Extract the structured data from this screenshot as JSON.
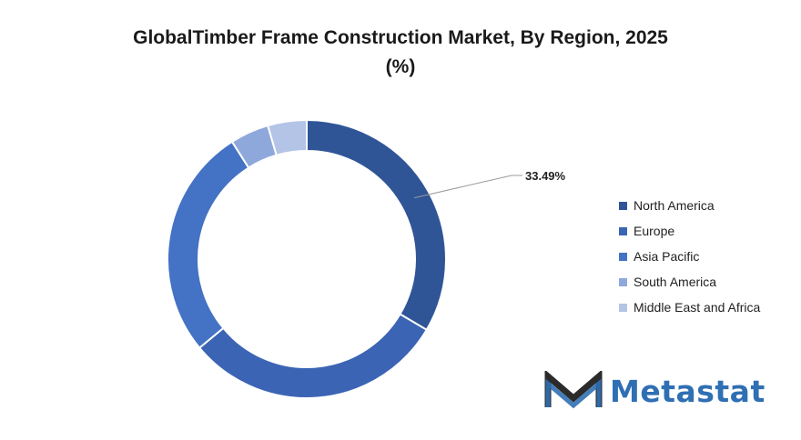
{
  "title_line1": "GlobalTimber Frame Construction Market, By Region, 2025",
  "title_line2": "(%)",
  "chart_data": {
    "type": "pie",
    "variant": "donut",
    "title": "GlobalTimber Frame Construction Market, By Region, 2025 (%)",
    "categories": [
      "North America",
      "Europe",
      "Asia Pacific",
      "South America",
      "Middle East and Africa"
    ],
    "values": [
      33.49,
      30.5,
      27.0,
      4.5,
      4.51
    ],
    "colors": [
      "#2f5597",
      "#3c64b4",
      "#4472c4",
      "#8fa8dc",
      "#b4c4e7"
    ],
    "data_labels": [
      {
        "category": "North America",
        "text": "33.49%"
      }
    ],
    "legend_position": "right"
  },
  "logo": {
    "text": "Metastat"
  }
}
